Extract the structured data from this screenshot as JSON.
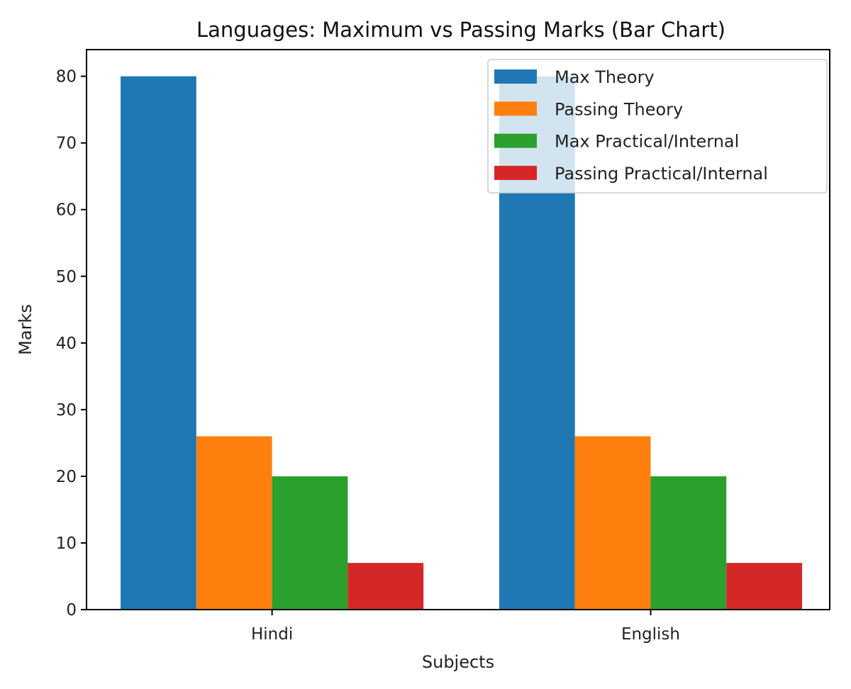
{
  "chart_data": {
    "type": "bar",
    "title": "Languages: Maximum vs Passing Marks (Bar Chart)",
    "xlabel": "Subjects",
    "ylabel": "Marks",
    "categories": [
      "Hindi",
      "English"
    ],
    "series": [
      {
        "name": "Max Theory",
        "values": [
          80,
          80
        ],
        "color": "#1f77b4"
      },
      {
        "name": "Passing Theory",
        "values": [
          26,
          26
        ],
        "color": "#ff7f0e"
      },
      {
        "name": "Max Practical/Internal",
        "values": [
          20,
          20
        ],
        "color": "#2ca02c"
      },
      {
        "name": "Passing Practical/Internal",
        "values": [
          7,
          7
        ],
        "color": "#d62728"
      }
    ],
    "ylim": [
      0,
      84
    ],
    "yticks": [
      0,
      10,
      20,
      30,
      40,
      50,
      60,
      70,
      80
    ],
    "grid": false,
    "legend_position": "top-right"
  }
}
